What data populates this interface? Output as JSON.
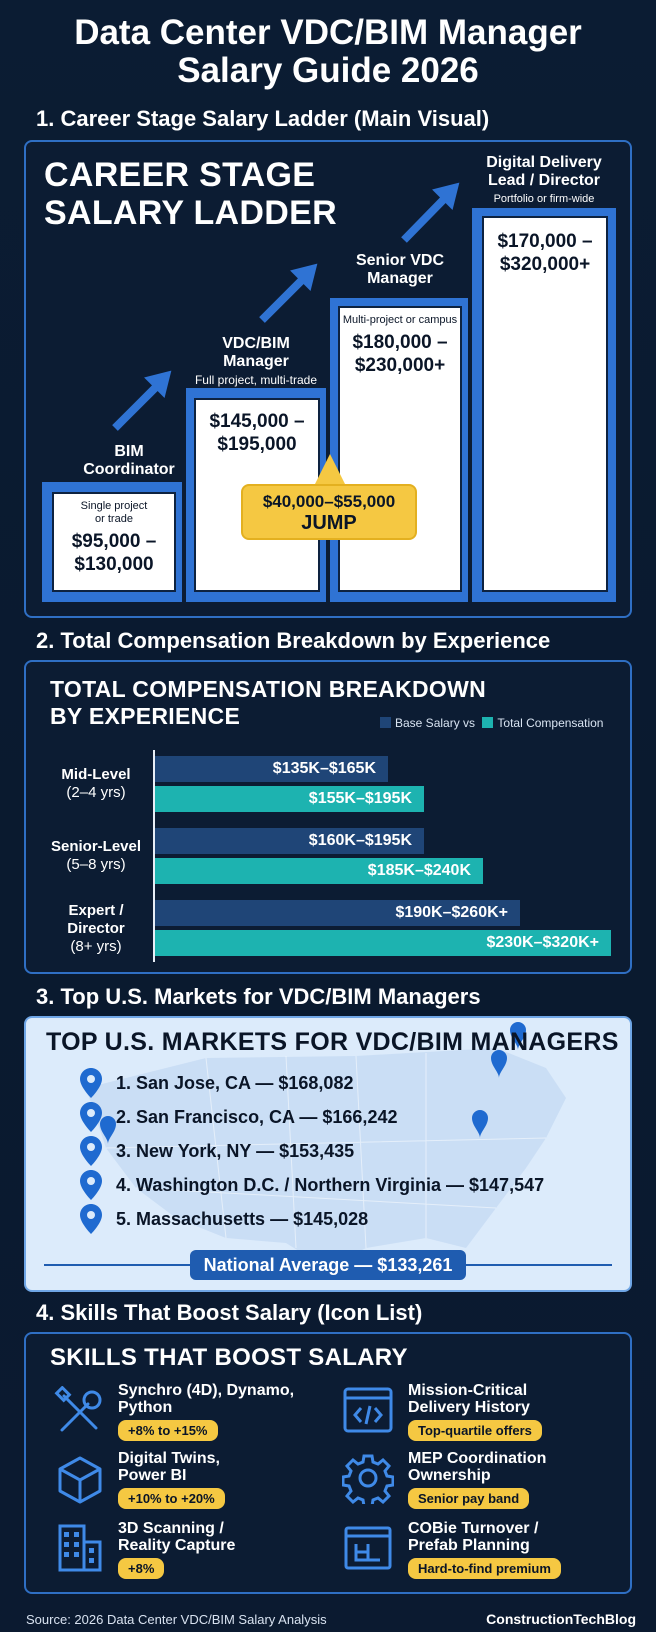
{
  "title_line1": "Data Center VDC/BIM Manager",
  "title_line2": "Salary Guide 2026",
  "section1": {
    "heading": "1.  Career Stage Salary Ladder (Main Visual)",
    "panel_title_line1": "CAREER STAGE",
    "panel_title_line2": "SALARY LADDER",
    "steps": [
      {
        "label_line1": "BIM",
        "label_line2": "Coordinator",
        "sub_line1": "Single project",
        "sub_line2": "or trade",
        "salary_line1": "$95,000 –",
        "salary_line2": "$130,000"
      },
      {
        "label_line1": "VDC/BIM",
        "label_line2": "Manager",
        "sub": "Full project, multi-trade",
        "salary_line1": "$145,000 –",
        "salary_line2": "$195,000"
      },
      {
        "label_line1": "Senior VDC",
        "label_line2": "Manager",
        "sub": "Multi-project or campus",
        "salary_line1": "$180,000 –",
        "salary_line2": "$230,000+"
      },
      {
        "label_line1": "Digital Delivery",
        "label_line2": "Lead / Director",
        "sub": "Portfolio or firm-wide",
        "salary_line1": "$170,000 –",
        "salary_line2": "$320,000+"
      }
    ],
    "jump_line1": "$40,000–$55,000",
    "jump_line2": "JUMP"
  },
  "section2": {
    "heading": "2.  Total Compensation Breakdown by Experience",
    "panel_title_line1": "TOTAL COMPENSATION BREAKDOWN",
    "panel_title_line2": "BY EXPERIENCE",
    "legend_base": "Base Salary vs",
    "legend_total": "Total Compensation",
    "colors": {
      "base": "#1f4577",
      "total": "#1db3b0"
    },
    "rows": [
      {
        "label_line1": "Mid-Level",
        "label_line2": "(2–4 yrs)",
        "base": "$135K–$165K",
        "total": "$155K–$195K",
        "base_fill": 0.51,
        "total_fill": 0.59
      },
      {
        "label_line1": "Senior-Level",
        "label_line2": "(5–8 yrs)",
        "base": "$160K–$195K",
        "total": "$185K–$240K",
        "base_fill": 0.59,
        "total_fill": 0.72
      },
      {
        "label_line1": "Expert /",
        "label_line2": "Director",
        "label_line3": "(8+ yrs)",
        "base": "$190K–$260K+",
        "total": "$230K–$320K+",
        "base_fill": 0.8,
        "total_fill": 1.0
      }
    ]
  },
  "section3": {
    "heading": "3.  Top U.S. Markets for VDC/BIM Managers",
    "panel_title": "TOP U.S. MARKETS FOR VDC/BIM MANAGERS",
    "markets": [
      "1. San Jose, CA — $168,082",
      "2. San Francisco, CA — $166,242",
      "3. New York, NY — $153,435",
      "4. Washington D.C. / Northern Virginia — $147,547",
      "5. Massachusetts — $145,028"
    ],
    "national_average": "National Average — $133,261"
  },
  "section4": {
    "heading": "4.  Skills That Boost Salary (Icon List)",
    "panel_title": "SKILLS THAT BOOST SALARY",
    "skills": [
      {
        "icon": "tools-icon",
        "title_line1": "Synchro (4D), Dynamo,",
        "title_line2": "Python",
        "badge": "+8% to +15%"
      },
      {
        "icon": "code-window-icon",
        "title_line1": "Mission-Critical",
        "title_line2": "Delivery History",
        "badge": "Top-quartile offers"
      },
      {
        "icon": "cube-icon",
        "title_line1": "Digital Twins,",
        "title_line2": "Power BI",
        "badge": "+10% to +20%"
      },
      {
        "icon": "gear-icon",
        "title_line1": "MEP Coordination",
        "title_line2": "Ownership",
        "badge": "Senior pay band"
      },
      {
        "icon": "building-icon",
        "title_line1": "3D Scanning /",
        "title_line2": "Reality Capture",
        "badge": "+8%"
      },
      {
        "icon": "blueprint-icon",
        "title_line1": "COBie Turnover /",
        "title_line2": "Prefab Planning",
        "badge": "Hard-to-find premium"
      }
    ]
  },
  "footer_source": "Source: 2026 Data Center VDC/BIM Salary Analysis",
  "footer_brand": "ConstructionTechBlog"
}
